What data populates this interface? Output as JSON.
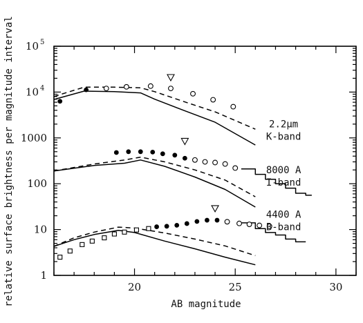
{
  "chart_data": {
    "type": "line",
    "title": "",
    "xlabel": "AB magnitude",
    "ylabel": "relative surface brightness per magnitude interval",
    "xlim": [
      16,
      31
    ],
    "ylim": [
      1,
      100000
    ],
    "yscale": "log",
    "grid": false,
    "x_ticks": [
      {
        "value": 20,
        "label": "20"
      },
      {
        "value": 25,
        "label": "25"
      },
      {
        "value": 30,
        "label": "30"
      }
    ],
    "y_ticks": [
      {
        "value": 1,
        "label": "1"
      },
      {
        "value": 10,
        "label": "10"
      },
      {
        "value": 100,
        "label": "100"
      },
      {
        "value": 1000,
        "label": "1000"
      },
      {
        "value": 10000,
        "label": "10",
        "exp": "4"
      },
      {
        "value": 100000,
        "label": "10",
        "exp": "5"
      }
    ],
    "annotations": [
      {
        "x": 27.4,
        "y": 1700,
        "lines": [
          "2.2μm",
          "K-band"
        ]
      },
      {
        "x": 27.4,
        "y": 170,
        "lines": [
          "8000 A",
          "I-band"
        ]
      },
      {
        "x": 27.4,
        "y": 18,
        "lines": [
          "4400 A",
          "B-band"
        ]
      }
    ],
    "series": [
      {
        "band": "K",
        "style": "solid",
        "points": [
          [
            16.0,
            6900
          ],
          [
            17.5,
            10500
          ],
          [
            19.0,
            10200
          ],
          [
            20.3,
            9600
          ],
          [
            21.0,
            7000
          ],
          [
            22.5,
            3900
          ],
          [
            24.0,
            2200
          ],
          [
            26.0,
            700
          ]
        ]
      },
      {
        "band": "K",
        "style": "dashed",
        "points": [
          [
            16.0,
            8000
          ],
          [
            17.5,
            12800
          ],
          [
            19.0,
            12800
          ],
          [
            20.3,
            12400
          ],
          [
            21.0,
            10200
          ],
          [
            22.5,
            6100
          ],
          [
            24.0,
            3700
          ],
          [
            26.0,
            1550
          ]
        ]
      },
      {
        "band": "I",
        "style": "solid",
        "points": [
          [
            16.0,
            190
          ],
          [
            18.0,
            250
          ],
          [
            19.5,
            280
          ],
          [
            20.3,
            330
          ],
          [
            21.5,
            240
          ],
          [
            23.0,
            140
          ],
          [
            24.5,
            75
          ],
          [
            26.0,
            31
          ]
        ]
      },
      {
        "band": "I",
        "style": "dashed",
        "points": [
          [
            16.0,
            190
          ],
          [
            18.0,
            270
          ],
          [
            19.5,
            330
          ],
          [
            20.3,
            380
          ],
          [
            21.5,
            300
          ],
          [
            23.0,
            200
          ],
          [
            24.5,
            120
          ],
          [
            26.0,
            52
          ]
        ]
      },
      {
        "band": "B",
        "style": "solid",
        "points": [
          [
            16.0,
            4.3
          ],
          [
            17.0,
            6.0
          ],
          [
            18.0,
            7.8
          ],
          [
            19.2,
            9.6
          ],
          [
            20.0,
            8.6
          ],
          [
            21.5,
            5.6
          ],
          [
            23.0,
            3.8
          ],
          [
            24.5,
            2.5
          ],
          [
            26.0,
            1.7
          ]
        ]
      },
      {
        "band": "B",
        "style": "dashed",
        "points": [
          [
            16.0,
            4.3
          ],
          [
            17.0,
            6.6
          ],
          [
            18.0,
            8.8
          ],
          [
            19.2,
            11.3
          ],
          [
            20.0,
            10.8
          ],
          [
            21.5,
            8.4
          ],
          [
            23.0,
            6.2
          ],
          [
            24.5,
            4.4
          ],
          [
            26.0,
            2.7
          ]
        ]
      },
      {
        "band": "I",
        "style": "step",
        "points": [
          [
            25.3,
            210
          ],
          [
            26.0,
            210
          ],
          [
            26.0,
            160
          ],
          [
            26.5,
            160
          ],
          [
            26.5,
            125
          ],
          [
            27.0,
            125
          ],
          [
            27.0,
            100
          ],
          [
            27.5,
            100
          ],
          [
            27.5,
            80
          ],
          [
            28.0,
            80
          ],
          [
            28.0,
            62
          ],
          [
            28.5,
            62
          ],
          [
            28.5,
            56
          ],
          [
            28.8,
            56
          ]
        ]
      },
      {
        "band": "B",
        "style": "step",
        "points": [
          [
            25.3,
            14
          ],
          [
            26.0,
            14
          ],
          [
            26.0,
            10.5
          ],
          [
            26.5,
            10.5
          ],
          [
            26.5,
            8.6
          ],
          [
            27.0,
            8.6
          ],
          [
            27.0,
            7.6
          ],
          [
            27.5,
            7.6
          ],
          [
            27.5,
            6.2
          ],
          [
            28.0,
            6.2
          ],
          [
            28.0,
            5.4
          ],
          [
            28.5,
            5.4
          ]
        ]
      },
      {
        "band": "K",
        "style": "filled-circle",
        "points": [
          [
            16.3,
            6300
          ],
          [
            17.6,
            11200
          ]
        ]
      },
      {
        "band": "K",
        "style": "open-circle",
        "points": [
          [
            18.6,
            12000
          ],
          [
            19.6,
            13000
          ],
          [
            20.8,
            13500
          ],
          [
            21.8,
            12000
          ],
          [
            22.9,
            9200
          ],
          [
            23.9,
            6800
          ],
          [
            24.9,
            4800
          ]
        ]
      },
      {
        "band": "K",
        "style": "triangle",
        "points": [
          [
            21.8,
            21000
          ]
        ]
      },
      {
        "band": "I",
        "style": "filled-circle",
        "points": [
          [
            19.1,
            480
          ],
          [
            19.7,
            500
          ],
          [
            20.3,
            500
          ],
          [
            20.9,
            490
          ],
          [
            21.4,
            450
          ],
          [
            22.0,
            420
          ],
          [
            22.5,
            360
          ]
        ]
      },
      {
        "band": "I",
        "style": "open-circle",
        "points": [
          [
            23.0,
            330
          ],
          [
            23.5,
            300
          ],
          [
            24.0,
            290
          ],
          [
            24.5,
            270
          ],
          [
            25.0,
            220
          ]
        ]
      },
      {
        "band": "I",
        "style": "triangle",
        "points": [
          [
            22.5,
            850
          ]
        ]
      },
      {
        "band": "B",
        "style": "filled-circle",
        "points": [
          [
            21.1,
            11.5
          ],
          [
            21.6,
            11.8
          ],
          [
            22.1,
            12.4
          ],
          [
            22.6,
            13.5
          ],
          [
            23.1,
            15.0
          ],
          [
            23.6,
            16.0
          ],
          [
            24.1,
            16.0
          ]
        ]
      },
      {
        "band": "B",
        "style": "open-circle",
        "points": [
          [
            24.6,
            14.8
          ],
          [
            25.2,
            13.6
          ],
          [
            25.7,
            13.0
          ],
          [
            26.2,
            12.3
          ],
          [
            26.7,
            11.8
          ]
        ]
      },
      {
        "band": "B",
        "style": "triangle",
        "points": [
          [
            24.0,
            29
          ]
        ]
      },
      {
        "band": "B",
        "style": "open-square",
        "points": [
          [
            16.3,
            2.5
          ],
          [
            16.8,
            3.4
          ],
          [
            17.4,
            4.7
          ],
          [
            17.9,
            5.6
          ],
          [
            18.5,
            6.6
          ],
          [
            19.0,
            8.0
          ],
          [
            19.5,
            8.8
          ],
          [
            20.1,
            9.8
          ],
          [
            20.7,
            10.5
          ]
        ]
      }
    ]
  }
}
